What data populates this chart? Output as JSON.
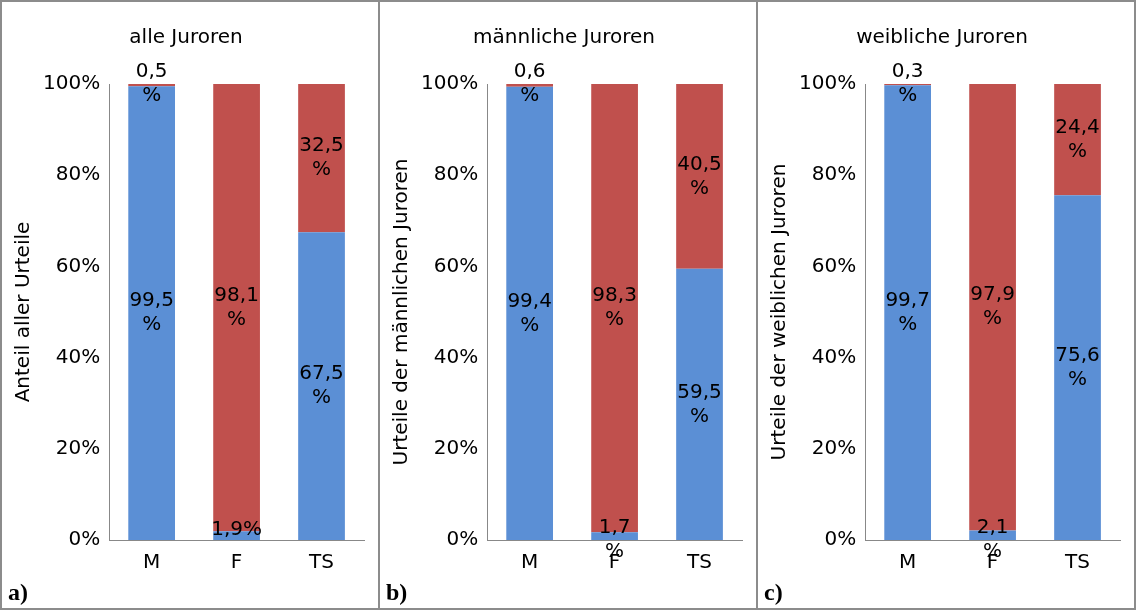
{
  "chart_data": [
    {
      "type": "bar",
      "title": "alle Juroren",
      "ylabel": "Anteil aller Urteile",
      "categories": [
        "M",
        "F",
        "TS"
      ],
      "stacked": true,
      "ylim": [
        0,
        100
      ],
      "yticks": [
        {
          "value": 0,
          "label": "0%"
        },
        {
          "value": 20,
          "label": "20%"
        },
        {
          "value": 40,
          "label": "40%"
        },
        {
          "value": 60,
          "label": "60%"
        },
        {
          "value": 80,
          "label": "80%"
        },
        {
          "value": 100,
          "label": "100%"
        }
      ],
      "grid": false,
      "legend": false,
      "annotations": [
        "a)"
      ],
      "series": [
        {
          "color": "#5b8fd5",
          "values": [
            99.5,
            1.9,
            67.5
          ],
          "value_labels": [
            "99,5 %",
            "1,9%",
            "67,5 %"
          ]
        },
        {
          "color": "#c0504d",
          "values": [
            0.5,
            98.1,
            32.5
          ],
          "value_labels": [
            "0,5 %",
            "98,1 %",
            "32,5 %"
          ]
        }
      ]
    },
    {
      "type": "bar",
      "title": "männliche Juroren",
      "ylabel": "Urteile der männlichen Juroren",
      "categories": [
        "M",
        "F",
        "TS"
      ],
      "stacked": true,
      "ylim": [
        0,
        100
      ],
      "yticks": [
        {
          "value": 0,
          "label": "0%"
        },
        {
          "value": 20,
          "label": "20%"
        },
        {
          "value": 40,
          "label": "40%"
        },
        {
          "value": 60,
          "label": "60%"
        },
        {
          "value": 80,
          "label": "80%"
        },
        {
          "value": 100,
          "label": "100%"
        }
      ],
      "grid": false,
      "legend": false,
      "annotations": [
        "b)"
      ],
      "series": [
        {
          "color": "#5b8fd5",
          "values": [
            99.4,
            1.7,
            59.5
          ],
          "value_labels": [
            "99,4 %",
            "1,7 %",
            "59,5 %"
          ]
        },
        {
          "color": "#c0504d",
          "values": [
            0.6,
            98.3,
            40.5
          ],
          "value_labels": [
            "0,6 %",
            "98,3 %",
            "40,5 %"
          ]
        }
      ]
    },
    {
      "type": "bar",
      "title": "weibliche Juroren",
      "ylabel": "Urteile der weiblichen Juroren",
      "categories": [
        "M",
        "F",
        "TS"
      ],
      "stacked": true,
      "ylim": [
        0,
        100
      ],
      "yticks": [
        {
          "value": 0,
          "label": "0%"
        },
        {
          "value": 20,
          "label": "20%"
        },
        {
          "value": 40,
          "label": "40%"
        },
        {
          "value": 60,
          "label": "60%"
        },
        {
          "value": 80,
          "label": "80%"
        },
        {
          "value": 100,
          "label": "100%"
        }
      ],
      "grid": false,
      "legend": false,
      "annotations": [
        "c)"
      ],
      "series": [
        {
          "color": "#5b8fd5",
          "values": [
            99.7,
            2.1,
            75.6
          ],
          "value_labels": [
            "99,7 %",
            "2,1 %",
            "75,6 %"
          ]
        },
        {
          "color": "#c0504d",
          "values": [
            0.3,
            97.9,
            24.4
          ],
          "value_labels": [
            "0,3 %",
            "97,9 %",
            "24,4 %"
          ]
        }
      ]
    }
  ]
}
